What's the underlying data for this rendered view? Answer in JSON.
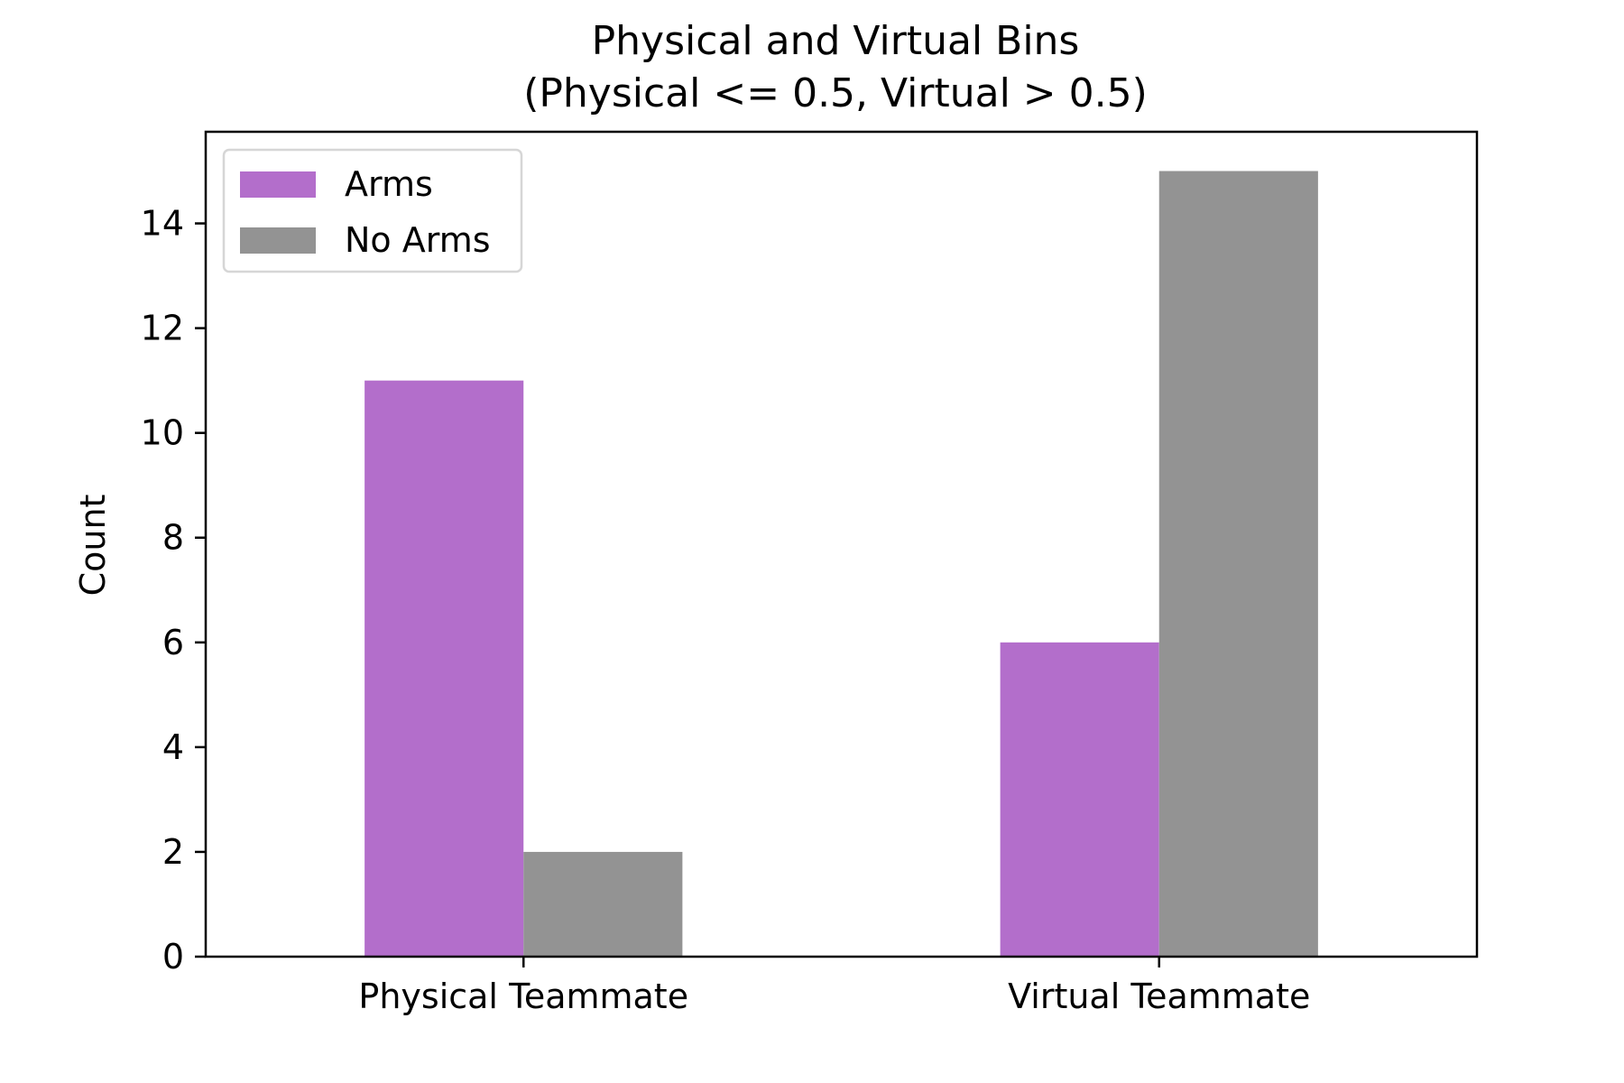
{
  "chart_data": {
    "type": "bar",
    "title": "Physical and Virtual Bins",
    "subtitle": "(Physical <= 0.5, Virtual > 0.5)",
    "xlabel": "",
    "ylabel": "Count",
    "categories": [
      "Physical Teammate",
      "Virtual Teammate"
    ],
    "series": [
      {
        "name": "Arms",
        "color": "#b36ecb",
        "values": [
          11,
          6
        ]
      },
      {
        "name": "No Arms",
        "color": "#939393",
        "values": [
          2,
          15
        ]
      }
    ],
    "ylim": [
      0,
      15.75
    ],
    "yticks": [
      0,
      2,
      4,
      6,
      8,
      10,
      12,
      14
    ],
    "legend_position": "top-left",
    "grid": false
  }
}
